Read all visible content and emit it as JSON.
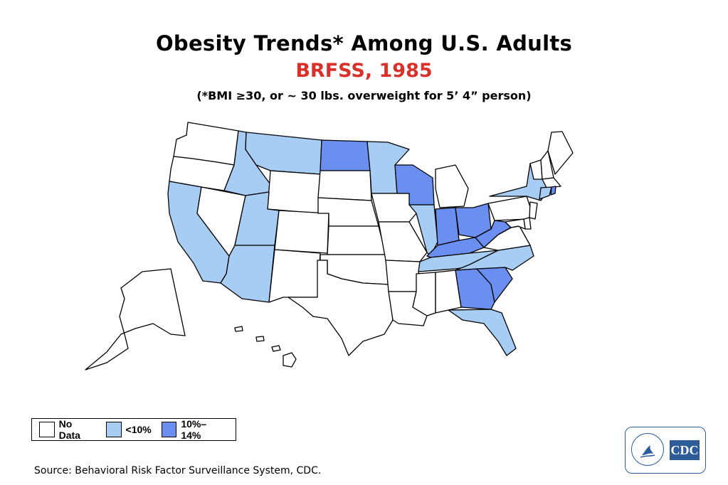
{
  "title": "Obesity Trends* Among U.S. Adults",
  "subtitle": "BRFSS, 1985",
  "note": "(*BMI ≥30, or ~ 30 lbs. overweight for 5’ 4” person)",
  "colors": {
    "no_data": "#ffffff",
    "lt10": "#a8cdf5",
    "p10_14": "#6a8ff0",
    "subtitle_red": "#d9312a",
    "cdc_blue": "#2c5d9a"
  },
  "legend": [
    {
      "label": "No Data",
      "category": "no_data"
    },
    {
      "label": "<10%",
      "category": "lt10"
    },
    {
      "label": "10%–14%",
      "category": "p10_14"
    }
  ],
  "source": "Source: Behavioral Risk Factor Surveillance System, CDC.",
  "logo_text": "CDC",
  "states": {
    "WA": "no_data",
    "OR": "no_data",
    "CA": "lt10",
    "NV": "no_data",
    "ID": "lt10",
    "MT": "lt10",
    "WY": "no_data",
    "UT": "lt10",
    "AZ": "lt10",
    "CO": "no_data",
    "NM": "no_data",
    "ND": "p10_14",
    "SD": "no_data",
    "NE": "no_data",
    "KS": "no_data",
    "OK": "no_data",
    "TX": "no_data",
    "MN": "lt10",
    "IA": "no_data",
    "MO": "no_data",
    "AR": "no_data",
    "LA": "no_data",
    "WI": "p10_14",
    "IL": "lt10",
    "MI": "no_data",
    "IN": "p10_14",
    "OH": "p10_14",
    "KY": "p10_14",
    "TN": "lt10",
    "MS": "no_data",
    "AL": "no_data",
    "GA": "p10_14",
    "FL": "lt10",
    "SC": "p10_14",
    "NC": "lt10",
    "VA": "no_data",
    "WV": "p10_14",
    "PA": "no_data",
    "NY": "lt10",
    "VT": "no_data",
    "NH": "no_data",
    "ME": "no_data",
    "MA": "no_data",
    "CT": "lt10",
    "RI": "p10_14",
    "NJ": "no_data",
    "DE": "no_data",
    "MD": "no_data",
    "AK": "no_data",
    "HI": "no_data"
  }
}
